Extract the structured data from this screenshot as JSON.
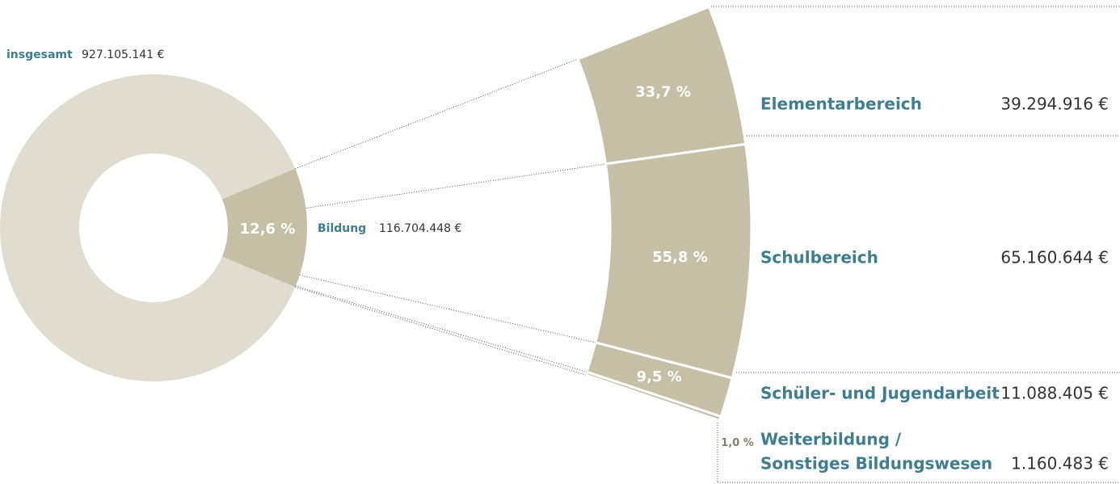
{
  "chart_data": {
    "type": "pie",
    "total": {
      "label": "insgesamt",
      "value": 927105141,
      "value_label": "927.105.141 €"
    },
    "highlight": {
      "name": "Bildung",
      "value": 12.6,
      "value_label": "12,6 %",
      "amount": 116704448,
      "amount_label": "116.704.448 €"
    },
    "breakdown": {
      "categories": [
        "Elementarbereich",
        "Schulbereich",
        "Schüler- und Jugendarbeit",
        [
          "Weiterbildung /",
          "Sonstiges Bildungswesen"
        ]
      ],
      "values": [
        33.7,
        55.8,
        9.5,
        1.0
      ],
      "value_labels": [
        "33,7 %",
        "55,8 %",
        "9,5 %",
        "1,0 %"
      ],
      "amounts": [
        39294916,
        65160644,
        11088405,
        1160483
      ],
      "amount_labels": [
        "39.294.916 €",
        "65.160.644 €",
        "11.088.405 €",
        "1.160.483 €"
      ]
    },
    "colors": {
      "rest": "#e0dccf",
      "highlight": "#c5bfa8",
      "name": "#3f7d8f",
      "text": "#333333",
      "small_label": "#8a7f66"
    }
  }
}
